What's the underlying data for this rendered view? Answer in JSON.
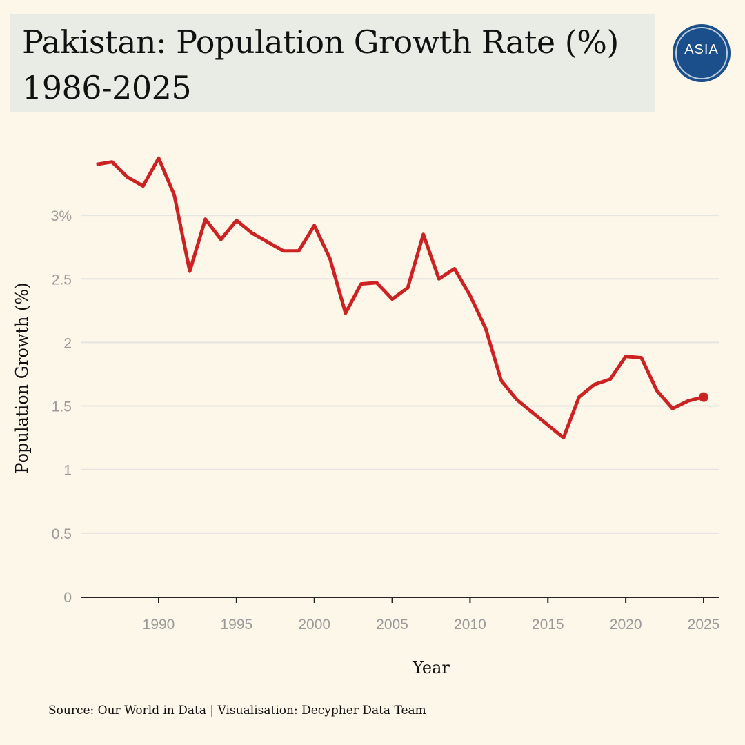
{
  "header": {
    "title_line1": "Pakistan: Population Growth Rate (%)",
    "title_line2": "1986-2025"
  },
  "logo": {
    "text": "ASIA"
  },
  "footer": {
    "source": "Source: Our World in Data | Visualisation: Decypher Data Team"
  },
  "colors": {
    "line": "#cc2222",
    "background": "#fdf7ea",
    "title_bg": "#e8ece5",
    "logo": "#1a4f8b"
  },
  "chart_data": {
    "type": "line",
    "title": "Pakistan: Population Growth Rate (%) 1986-2025",
    "xlabel": "Year",
    "ylabel": "Population Growth (%)",
    "xlim": [
      1985.5,
      2026
    ],
    "ylim": [
      0,
      3.5
    ],
    "x_ticks": [
      1990,
      1995,
      2000,
      2005,
      2010,
      2015,
      2020,
      2025
    ],
    "y_ticks": [
      0,
      0.5,
      1,
      1.5,
      2,
      2.5,
      3
    ],
    "y_tick_labels": [
      "0",
      "0.5",
      "1",
      "1.5",
      "2",
      "2.5",
      "3%"
    ],
    "grid": true,
    "series": [
      {
        "name": "Pakistan",
        "x": [
          1986,
          1987,
          1988,
          1989,
          1990,
          1991,
          1992,
          1993,
          1994,
          1995,
          1996,
          1997,
          1998,
          1999,
          2000,
          2001,
          2002,
          2003,
          2004,
          2005,
          2006,
          2007,
          2008,
          2009,
          2010,
          2011,
          2012,
          2013,
          2014,
          2015,
          2016,
          2017,
          2018,
          2019,
          2020,
          2021,
          2022,
          2023,
          2024,
          2025
        ],
        "values": [
          3.4,
          3.42,
          3.3,
          3.23,
          3.45,
          3.16,
          2.56,
          2.97,
          2.81,
          2.96,
          2.86,
          2.79,
          2.72,
          2.72,
          2.92,
          2.66,
          2.23,
          2.46,
          2.47,
          2.34,
          2.43,
          2.85,
          2.5,
          2.58,
          2.37,
          2.11,
          1.7,
          1.55,
          1.45,
          1.35,
          1.25,
          1.57,
          1.67,
          1.71,
          1.89,
          1.88,
          1.62,
          1.48,
          1.54,
          1.57
        ]
      }
    ]
  }
}
